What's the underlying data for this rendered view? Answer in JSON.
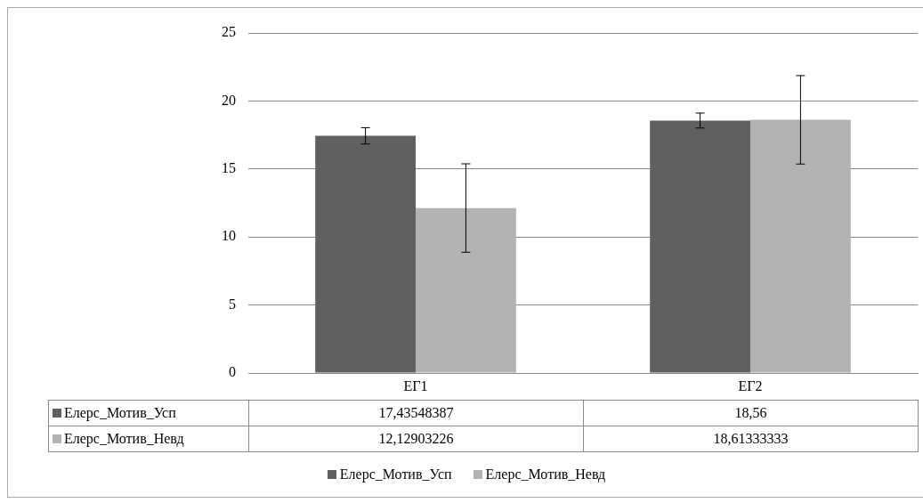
{
  "chart_data": {
    "type": "bar",
    "categories": [
      "ЕГ1",
      "ЕГ2"
    ],
    "series": [
      {
        "name": "Елерс_Мотив_Усп",
        "color": "#606060",
        "values": [
          17.43548387,
          18.56
        ],
        "errors": [
          0.6,
          0.55
        ],
        "value_labels": [
          "17,43548387",
          "18,56"
        ]
      },
      {
        "name": "Елерс_Мотив_Невд",
        "color": "#b3b3b3",
        "values": [
          12.12903226,
          18.61333333
        ],
        "errors": [
          3.25,
          3.25
        ],
        "value_labels": [
          "12,12903226",
          "18,61333333"
        ]
      }
    ],
    "ylim": [
      0,
      25
    ],
    "yticks": [
      0,
      5,
      10,
      15,
      20,
      25
    ],
    "grid": "y",
    "legend": "bottom"
  }
}
